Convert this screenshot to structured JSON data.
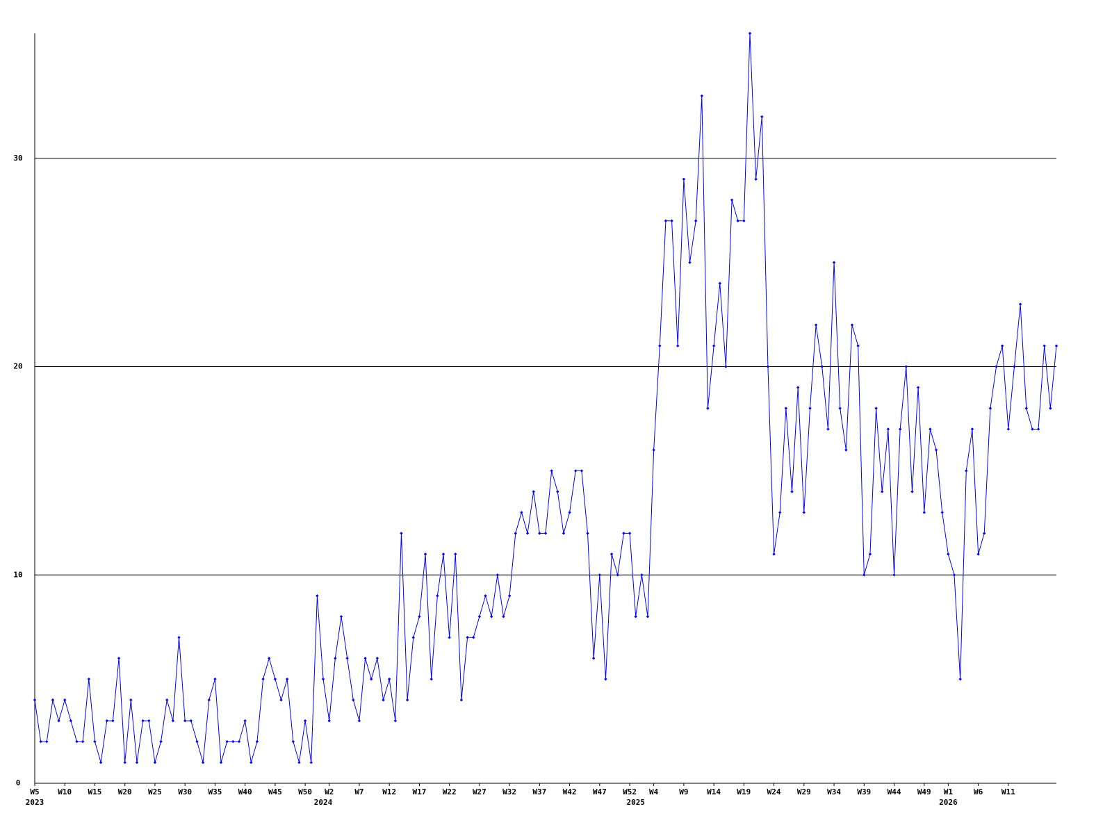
{
  "chart_data": {
    "type": "line",
    "ylim": [
      0,
      36
    ],
    "yticks": [
      0,
      10,
      20,
      30
    ],
    "grid": true,
    "categories": [
      "W5",
      null,
      null,
      null,
      null,
      "W10",
      null,
      null,
      null,
      null,
      "W15",
      null,
      null,
      null,
      null,
      "W20",
      null,
      null,
      null,
      null,
      "W25",
      null,
      null,
      null,
      null,
      "W30",
      null,
      null,
      null,
      null,
      "W35",
      null,
      null,
      null,
      null,
      "W40",
      null,
      null,
      null,
      null,
      "W45",
      null,
      null,
      null,
      null,
      "W50",
      null,
      null,
      null,
      "W2",
      null,
      null,
      null,
      null,
      "W7",
      null,
      null,
      null,
      null,
      "W12",
      null,
      null,
      null,
      null,
      "W17",
      null,
      null,
      null,
      null,
      "W22",
      null,
      null,
      null,
      null,
      "W27",
      null,
      null,
      null,
      null,
      "W32",
      null,
      null,
      null,
      null,
      "W37",
      null,
      null,
      null,
      null,
      "W42",
      null,
      null,
      null,
      null,
      "W47",
      null,
      null,
      null,
      null,
      "W52",
      null,
      null,
      null,
      "W4",
      null,
      null,
      null,
      null,
      "W9",
      null,
      null,
      null,
      null,
      "W14",
      null,
      null,
      null,
      null,
      "W19",
      null,
      null,
      null,
      null,
      "W24",
      null,
      null,
      null,
      null,
      "W29",
      null,
      null,
      null,
      null,
      "W34",
      null,
      null,
      null,
      null,
      "W39",
      null,
      null,
      null,
      null,
      "W44",
      null,
      null,
      null,
      null,
      "W49",
      null,
      null,
      null,
      "W1",
      null,
      null,
      null,
      null,
      "W6",
      null,
      null,
      null,
      null,
      "W11",
      null,
      null,
      null,
      null,
      null,
      null,
      null,
      null
    ],
    "category_years": [
      "2023",
      null,
      null,
      null,
      null,
      null,
      null,
      null,
      null,
      null,
      null,
      null,
      null,
      null,
      null,
      null,
      null,
      null,
      null,
      null,
      null,
      null,
      null,
      null,
      null,
      null,
      null,
      null,
      null,
      null,
      null,
      null,
      null,
      null,
      null,
      null,
      null,
      null,
      null,
      null,
      null,
      null,
      null,
      null,
      null,
      null,
      null,
      null,
      "2024",
      null,
      null,
      null,
      null,
      null,
      null,
      null,
      null,
      null,
      null,
      null,
      null,
      null,
      null,
      null,
      null,
      null,
      null,
      null,
      null,
      null,
      null,
      null,
      null,
      null,
      null,
      null,
      null,
      null,
      null,
      null,
      null,
      null,
      null,
      null,
      null,
      null,
      null,
      null,
      null,
      null,
      null,
      null,
      null,
      null,
      null,
      null,
      null,
      null,
      null,
      null,
      "2025",
      null,
      null,
      null,
      null,
      null,
      null,
      null,
      null,
      null,
      null,
      null,
      null,
      null,
      null,
      null,
      null,
      null,
      null,
      null,
      null,
      null,
      null,
      null,
      null,
      null,
      null,
      null,
      null,
      null,
      null,
      null,
      null,
      null,
      null,
      null,
      null,
      null,
      null,
      null,
      null,
      null,
      null,
      null,
      null,
      null,
      null,
      null,
      null,
      null,
      null,
      null,
      "2026",
      null,
      null,
      null,
      null,
      null,
      null,
      null,
      null,
      null,
      null,
      null,
      null,
      null,
      null,
      null,
      null,
      null,
      null
    ],
    "series": [
      {
        "color": "#0000ff",
        "values": [
          4,
          2,
          2,
          4,
          3,
          4,
          3,
          2,
          2,
          5,
          2,
          1,
          3,
          3,
          6,
          1,
          4,
          1,
          3,
          3,
          1,
          2,
          4,
          3,
          7,
          3,
          3,
          2,
          1,
          4,
          5,
          1,
          2,
          2,
          2,
          3,
          1,
          2,
          5,
          6,
          5,
          4,
          5,
          2,
          1,
          3,
          1,
          9,
          5,
          3,
          6,
          8,
          6,
          4,
          3,
          6,
          5,
          6,
          4,
          5,
          3,
          12,
          4,
          7,
          8,
          11,
          5,
          9,
          11,
          7,
          11,
          4,
          7,
          7,
          8,
          9,
          8,
          10,
          8,
          9,
          12,
          13,
          12,
          14,
          12,
          12,
          15,
          14,
          12,
          13,
          15,
          15,
          12,
          6,
          10,
          5,
          11,
          10,
          12,
          12,
          8,
          10,
          8,
          16,
          21,
          27,
          27,
          21,
          29,
          25,
          27,
          33,
          18,
          21,
          24,
          20,
          28,
          27,
          27,
          36,
          29,
          32,
          20,
          11,
          13,
          18,
          14,
          19,
          13,
          18,
          22,
          20,
          17,
          25,
          18,
          16,
          22,
          21,
          10,
          11,
          18,
          14,
          17,
          10,
          17,
          20,
          14,
          19,
          13,
          17,
          16,
          13,
          11,
          10,
          5,
          15,
          17,
          11,
          12,
          18,
          20,
          21,
          17,
          20,
          23,
          18,
          17,
          17,
          21,
          18,
          21
        ]
      }
    ]
  }
}
